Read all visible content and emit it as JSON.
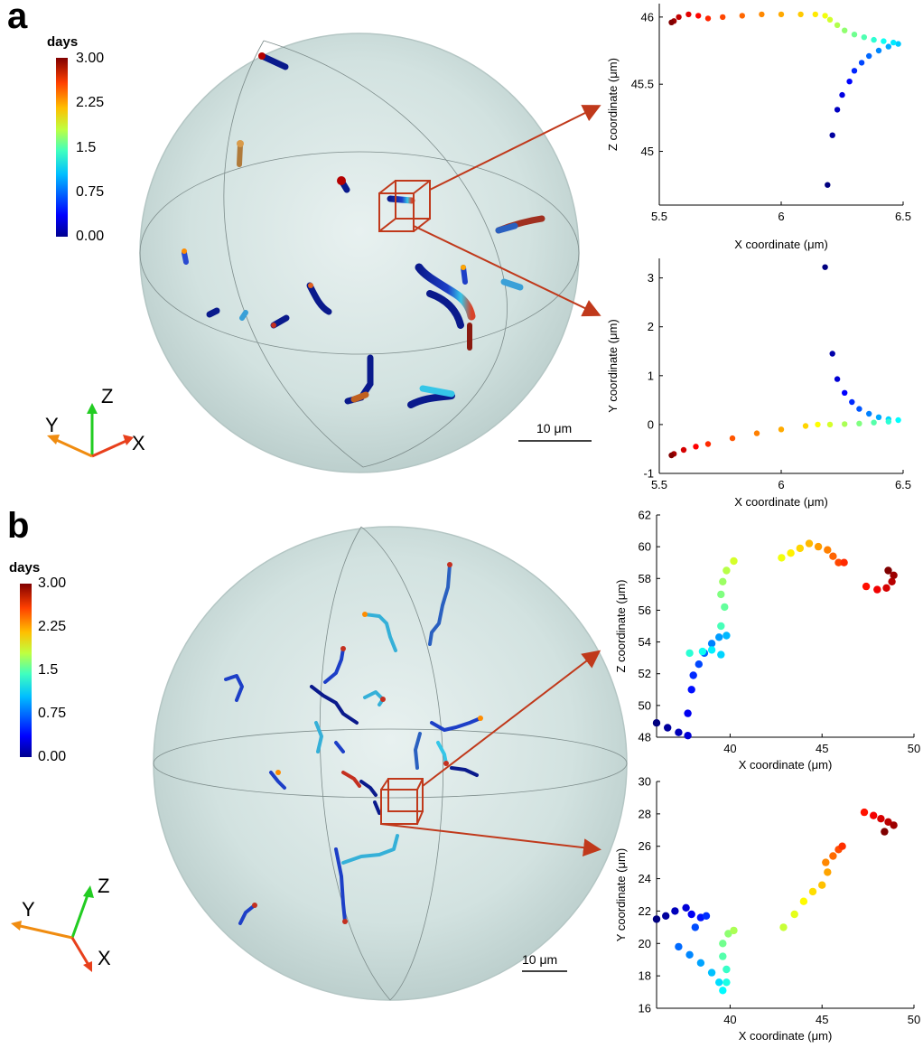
{
  "panel_a": {
    "letter": "a",
    "colorbar": {
      "title": "days",
      "ticks": [
        "3.00",
        "2.25",
        "1.5",
        "0.75",
        "0.00"
      ]
    },
    "axes_glyph": {
      "z": "Z",
      "y": "Y",
      "x": "X"
    },
    "scale_bar": "10 μm"
  },
  "panel_b": {
    "letter": "b",
    "colorbar": {
      "title": "days",
      "ticks": [
        "3.00",
        "2.25",
        "1.5",
        "0.75",
        "0.00"
      ]
    },
    "axes_glyph": {
      "z": "Z",
      "y": "Y",
      "x": "X"
    },
    "scale_bar": "10 μm"
  },
  "colors": {
    "sphere_fill": "#cfe0de",
    "sphere_edge": "#b4c6c4",
    "arrow": "#c0391b",
    "dot_cool": "#0a1a8c"
  },
  "chart_data": [
    {
      "id": "a-xz",
      "type": "scatter",
      "xlabel": "X coordinate (μm)",
      "ylabel": "Z coordinate (μm)",
      "xlim": [
        5.5,
        6.5
      ],
      "ylim": [
        44.6,
        46.1
      ],
      "xticks": [
        "5.5",
        "6",
        "6.5"
      ],
      "yticks": [
        "45",
        "45.5",
        "46"
      ],
      "points": [
        [
          6.19,
          44.75
        ],
        [
          6.21,
          45.12
        ],
        [
          6.23,
          45.31
        ],
        [
          6.25,
          45.42
        ],
        [
          6.28,
          45.52
        ],
        [
          6.3,
          45.6
        ],
        [
          6.33,
          45.66
        ],
        [
          6.36,
          45.71
        ],
        [
          6.4,
          45.75
        ],
        [
          6.44,
          45.78
        ],
        [
          6.48,
          45.8
        ],
        [
          6.46,
          45.81
        ],
        [
          6.42,
          45.82
        ],
        [
          6.38,
          45.83
        ],
        [
          6.34,
          45.85
        ],
        [
          6.3,
          45.87
        ],
        [
          6.26,
          45.9
        ],
        [
          6.23,
          45.94
        ],
        [
          6.2,
          45.98
        ],
        [
          6.18,
          46.01
        ],
        [
          6.14,
          46.02
        ],
        [
          6.08,
          46.02
        ],
        [
          6.0,
          46.02
        ],
        [
          5.92,
          46.02
        ],
        [
          5.84,
          46.01
        ],
        [
          5.76,
          46.0
        ],
        [
          5.7,
          45.99
        ],
        [
          5.66,
          46.01
        ],
        [
          5.62,
          46.02
        ],
        [
          5.58,
          46.0
        ],
        [
          5.56,
          45.97
        ],
        [
          5.55,
          45.96
        ]
      ]
    },
    {
      "id": "a-xy",
      "type": "scatter",
      "xlabel": "X coordinate (μm)",
      "ylabel": "Y coordinate (μm)",
      "xlim": [
        5.5,
        6.5
      ],
      "ylim": [
        -1,
        3.4
      ],
      "xticks": [
        "5.5",
        "6",
        "6.5"
      ],
      "yticks": [
        "-1",
        "0",
        "1",
        "2",
        "3"
      ],
      "points": [
        [
          6.18,
          3.22
        ],
        [
          6.21,
          1.45
        ],
        [
          6.23,
          0.93
        ],
        [
          6.26,
          0.65
        ],
        [
          6.29,
          0.46
        ],
        [
          6.32,
          0.32
        ],
        [
          6.36,
          0.22
        ],
        [
          6.4,
          0.15
        ],
        [
          6.44,
          0.11
        ],
        [
          6.48,
          0.09
        ],
        [
          6.44,
          0.06
        ],
        [
          6.38,
          0.04
        ],
        [
          6.32,
          0.02
        ],
        [
          6.26,
          0.01
        ],
        [
          6.2,
          0.0
        ],
        [
          6.15,
          0.0
        ],
        [
          6.1,
          -0.03
        ],
        [
          6.0,
          -0.1
        ],
        [
          5.9,
          -0.18
        ],
        [
          5.8,
          -0.28
        ],
        [
          5.7,
          -0.4
        ],
        [
          5.65,
          -0.45
        ],
        [
          5.6,
          -0.52
        ],
        [
          5.56,
          -0.6
        ],
        [
          5.55,
          -0.63
        ]
      ]
    },
    {
      "id": "b-xz",
      "type": "scatter",
      "xlabel": "X coordinate (μm)",
      "ylabel": "Z coordinate (μm)",
      "xlim": [
        36,
        50
      ],
      "ylim": [
        48,
        62
      ],
      "xticks": [
        "40",
        "45",
        "50"
      ],
      "yticks": [
        "48",
        "50",
        "52",
        "54",
        "56",
        "58",
        "60",
        "62"
      ],
      "points": [
        [
          36.0,
          48.9
        ],
        [
          36.6,
          48.6
        ],
        [
          37.2,
          48.3
        ],
        [
          37.7,
          48.1
        ],
        [
          37.7,
          49.5
        ],
        [
          37.9,
          51.0
        ],
        [
          38.0,
          51.9
        ],
        [
          38.3,
          52.6
        ],
        [
          38.6,
          53.3
        ],
        [
          39.0,
          53.9
        ],
        [
          39.4,
          54.3
        ],
        [
          39.8,
          54.4
        ],
        [
          39.5,
          53.2
        ],
        [
          39.0,
          53.5
        ],
        [
          38.5,
          53.4
        ],
        [
          37.8,
          53.3
        ],
        [
          39.5,
          55.0
        ],
        [
          39.7,
          56.2
        ],
        [
          39.5,
          57.0
        ],
        [
          39.6,
          57.8
        ],
        [
          39.8,
          58.5
        ],
        [
          40.2,
          59.1
        ],
        [
          42.8,
          59.3
        ],
        [
          43.3,
          59.6
        ],
        [
          43.8,
          59.9
        ],
        [
          44.3,
          60.2
        ],
        [
          44.8,
          60.0
        ],
        [
          45.3,
          59.8
        ],
        [
          45.6,
          59.4
        ],
        [
          45.9,
          59.0
        ],
        [
          46.2,
          59.0
        ],
        [
          47.4,
          57.5
        ],
        [
          48.0,
          57.3
        ],
        [
          48.5,
          57.4
        ],
        [
          48.8,
          57.8
        ],
        [
          48.9,
          58.2
        ],
        [
          48.6,
          58.5
        ]
      ]
    },
    {
      "id": "b-xy",
      "type": "scatter",
      "xlabel": "X coordinate (μm)",
      "ylabel": "Y coordinate (μm)",
      "xlim": [
        36,
        50
      ],
      "ylim": [
        16,
        30
      ],
      "xticks": [
        "40",
        "45",
        "50"
      ],
      "yticks": [
        "16",
        "18",
        "20",
        "22",
        "24",
        "26",
        "28",
        "30"
      ],
      "points": [
        [
          36.0,
          21.5
        ],
        [
          36.5,
          21.7
        ],
        [
          37.0,
          22.0
        ],
        [
          37.6,
          22.2
        ],
        [
          37.9,
          21.8
        ],
        [
          38.4,
          21.6
        ],
        [
          38.7,
          21.7
        ],
        [
          38.1,
          21.0
        ],
        [
          37.2,
          19.8
        ],
        [
          37.8,
          19.3
        ],
        [
          38.4,
          18.8
        ],
        [
          39.0,
          18.2
        ],
        [
          39.4,
          17.6
        ],
        [
          39.6,
          17.1
        ],
        [
          39.8,
          17.6
        ],
        [
          39.8,
          18.4
        ],
        [
          39.6,
          19.2
        ],
        [
          39.6,
          20.0
        ],
        [
          39.9,
          20.6
        ],
        [
          40.2,
          20.8
        ],
        [
          42.9,
          21.0
        ],
        [
          43.5,
          21.8
        ],
        [
          44.0,
          22.6
        ],
        [
          44.5,
          23.2
        ],
        [
          45.0,
          23.6
        ],
        [
          45.3,
          24.4
        ],
        [
          45.2,
          25.0
        ],
        [
          45.6,
          25.4
        ],
        [
          45.9,
          25.8
        ],
        [
          46.1,
          26.0
        ],
        [
          47.3,
          28.1
        ],
        [
          47.8,
          27.9
        ],
        [
          48.2,
          27.7
        ],
        [
          48.6,
          27.5
        ],
        [
          48.9,
          27.3
        ],
        [
          48.4,
          26.9
        ]
      ]
    }
  ]
}
